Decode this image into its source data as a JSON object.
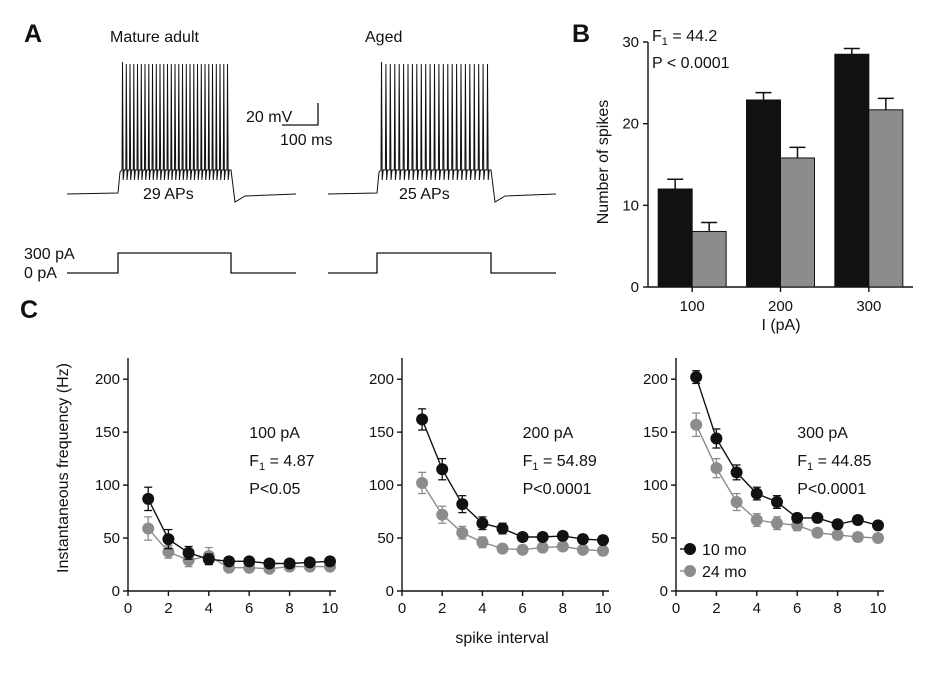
{
  "panels": {
    "a": "A",
    "b": "B",
    "c": "C"
  },
  "traces": {
    "left_title": "Mature adult",
    "right_title": "Aged",
    "left_count": "29 APs",
    "right_count": "25 APs",
    "scalebar_v": "20 mV",
    "scalebar_h": "100 ms",
    "step_high": "300 pA",
    "step_low": "0 pA",
    "left_spike_count": 29,
    "right_spike_count": 25
  },
  "chart_data": [
    {
      "id": "B",
      "type": "bar",
      "categories": [
        "100",
        "200",
        "300"
      ],
      "series": [
        {
          "color": "#111111",
          "values": [
            12.0,
            22.9,
            28.5
          ],
          "errors": [
            1.2,
            0.9,
            0.7
          ]
        },
        {
          "color": "#8c8c8c",
          "values": [
            6.8,
            15.8,
            21.7
          ],
          "errors": [
            1.1,
            1.3,
            1.4
          ]
        }
      ],
      "xlabel": "I (pA)",
      "ylabel": "Number of spikes",
      "ylim": [
        0,
        30
      ],
      "yticks": [
        "0",
        "10",
        "20",
        "30"
      ],
      "annotation": [
        "F",
        "1",
        " = 44.2",
        "P < 0.0001"
      ]
    },
    {
      "id": "C1",
      "type": "line",
      "x": [
        1,
        2,
        3,
        4,
        5,
        6,
        7,
        8,
        9,
        10
      ],
      "series": [
        {
          "color": "#111111",
          "values": [
            87,
            49,
            36,
            30,
            28,
            28,
            26,
            26,
            27,
            28
          ],
          "errors": [
            11,
            9,
            6,
            5,
            3,
            3,
            3,
            3,
            3,
            3
          ]
        },
        {
          "color": "#8c8c8c",
          "values": [
            59,
            37,
            29,
            33,
            22,
            22,
            21,
            23,
            23,
            23
          ],
          "errors": [
            11,
            6,
            6,
            8,
            3,
            3,
            3,
            3,
            3,
            3
          ]
        }
      ],
      "annotation": [
        "100 pA",
        "F",
        "1",
        " = 4.87",
        "P<0.05"
      ],
      "ylabel": "Instantaneous frequency (Hz)",
      "xlim": [
        0,
        10
      ],
      "ylim": [
        0,
        220
      ],
      "xticks": [
        "0",
        "2",
        "4",
        "6",
        "8",
        "10"
      ],
      "yticks": [
        "0",
        "50",
        "100",
        "150",
        "200"
      ]
    },
    {
      "id": "C2",
      "type": "line",
      "x": [
        1,
        2,
        3,
        4,
        5,
        6,
        7,
        8,
        9,
        10
      ],
      "series": [
        {
          "color": "#111111",
          "values": [
            162,
            115,
            82,
            64,
            59,
            51,
            51,
            52,
            49,
            48
          ],
          "errors": [
            10,
            10,
            8,
            6,
            5,
            4,
            4,
            4,
            4,
            4
          ]
        },
        {
          "color": "#8c8c8c",
          "values": [
            102,
            72,
            55,
            46,
            40,
            39,
            41,
            42,
            39,
            38
          ],
          "errors": [
            10,
            8,
            6,
            5,
            4,
            4,
            4,
            4,
            4,
            4
          ]
        }
      ],
      "annotation": [
        "200 pA",
        "F",
        "1",
        " = 54.89",
        "P<0.0001"
      ],
      "xlabel": "spike interval",
      "xlim": [
        0,
        10
      ],
      "ylim": [
        0,
        220
      ],
      "xticks": [
        "0",
        "2",
        "4",
        "6",
        "8",
        "10"
      ],
      "yticks": [
        "0",
        "50",
        "100",
        "150",
        "200"
      ]
    },
    {
      "id": "C3",
      "type": "line",
      "x": [
        1,
        2,
        3,
        4,
        5,
        6,
        7,
        8,
        9,
        10
      ],
      "series": [
        {
          "name": "10 mo",
          "color": "#111111",
          "values": [
            202,
            144,
            112,
            92,
            84,
            69,
            69,
            63,
            67,
            62
          ],
          "errors": [
            6,
            9,
            7,
            6,
            6,
            4,
            4,
            4,
            4,
            4
          ]
        },
        {
          "name": "24 mo",
          "color": "#8c8c8c",
          "values": [
            157,
            116,
            84,
            67,
            64,
            62,
            55,
            53,
            51,
            50
          ],
          "errors": [
            11,
            9,
            8,
            6,
            6,
            5,
            4,
            4,
            4,
            4
          ]
        }
      ],
      "annotation": [
        "300 pA",
        "F",
        "1",
        " = 44.85",
        "P<0.0001"
      ],
      "xlim": [
        0,
        10
      ],
      "ylim": [
        0,
        220
      ],
      "xticks": [
        "0",
        "2",
        "4",
        "6",
        "8",
        "10"
      ],
      "yticks": [
        "0",
        "50",
        "100",
        "150",
        "200"
      ],
      "legend": "lower-left"
    }
  ]
}
